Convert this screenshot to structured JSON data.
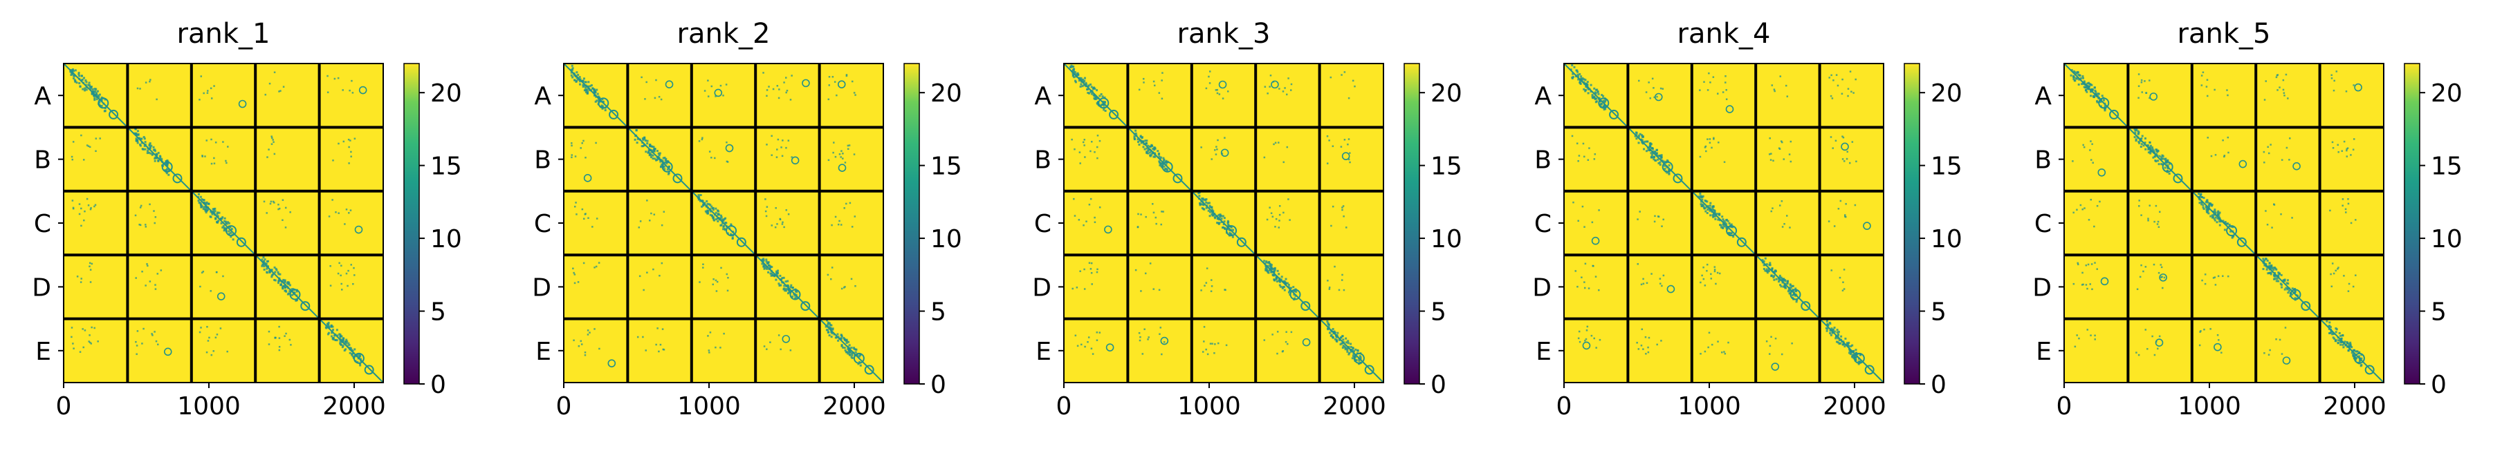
{
  "chart_data": [
    {
      "type": "heatmap",
      "title": "rank_1",
      "row_labels": [
        "A",
        "B",
        "C",
        "D",
        "E"
      ],
      "xticks": [
        "0",
        "1000",
        "2000"
      ],
      "xlim": [
        0,
        2200
      ],
      "n_blocks": 5,
      "block_size": 440,
      "colorbar": {
        "range": [
          0,
          22
        ],
        "ticks": [
          "0",
          "5",
          "10",
          "15",
          "20"
        ],
        "colormap": "viridis"
      },
      "dense_blocks": [
        0,
        1,
        2,
        3,
        4
      ]
    },
    {
      "type": "heatmap",
      "title": "rank_2",
      "row_labels": [
        "A",
        "B",
        "C",
        "D",
        "E"
      ],
      "xticks": [
        "0",
        "1000",
        "2000"
      ],
      "xlim": [
        0,
        2200
      ],
      "n_blocks": 5,
      "block_size": 440,
      "colorbar": {
        "range": [
          0,
          22
        ],
        "ticks": [
          "0",
          "5",
          "10",
          "15",
          "20"
        ],
        "colormap": "viridis"
      },
      "dense_blocks": [
        0,
        1,
        2,
        3,
        4
      ]
    },
    {
      "type": "heatmap",
      "title": "rank_3",
      "row_labels": [
        "A",
        "B",
        "C",
        "D",
        "E"
      ],
      "xticks": [
        "0",
        "1000",
        "2000"
      ],
      "xlim": [
        0,
        2200
      ],
      "n_blocks": 5,
      "block_size": 440,
      "colorbar": {
        "range": [
          0,
          22
        ],
        "ticks": [
          "0",
          "5",
          "10",
          "15",
          "20"
        ],
        "colormap": "viridis"
      },
      "dense_blocks": [
        0,
        1,
        2,
        3,
        4
      ]
    },
    {
      "type": "heatmap",
      "title": "rank_4",
      "row_labels": [
        "A",
        "B",
        "C",
        "D",
        "E"
      ],
      "xticks": [
        "0",
        "1000",
        "2000"
      ],
      "xlim": [
        0,
        2200
      ],
      "n_blocks": 5,
      "block_size": 440,
      "colorbar": {
        "range": [
          0,
          22
        ],
        "ticks": [
          "0",
          "5",
          "10",
          "15",
          "20"
        ],
        "colormap": "viridis"
      },
      "dense_blocks": [
        0,
        1,
        2,
        3,
        4
      ]
    },
    {
      "type": "heatmap",
      "title": "rank_5",
      "row_labels": [
        "A",
        "B",
        "C",
        "D",
        "E"
      ],
      "xticks": [
        "0",
        "1000",
        "2000"
      ],
      "xlim": [
        0,
        2200
      ],
      "n_blocks": 5,
      "block_size": 440,
      "colorbar": {
        "range": [
          0,
          22
        ],
        "ticks": [
          "0",
          "5",
          "10",
          "15",
          "20"
        ],
        "colormap": "viridis"
      },
      "dense_blocks": [
        0,
        1,
        2,
        3,
        4
      ]
    }
  ],
  "colors": {
    "high": "#fde725",
    "spot": "#21918c",
    "grid": "#000000"
  }
}
